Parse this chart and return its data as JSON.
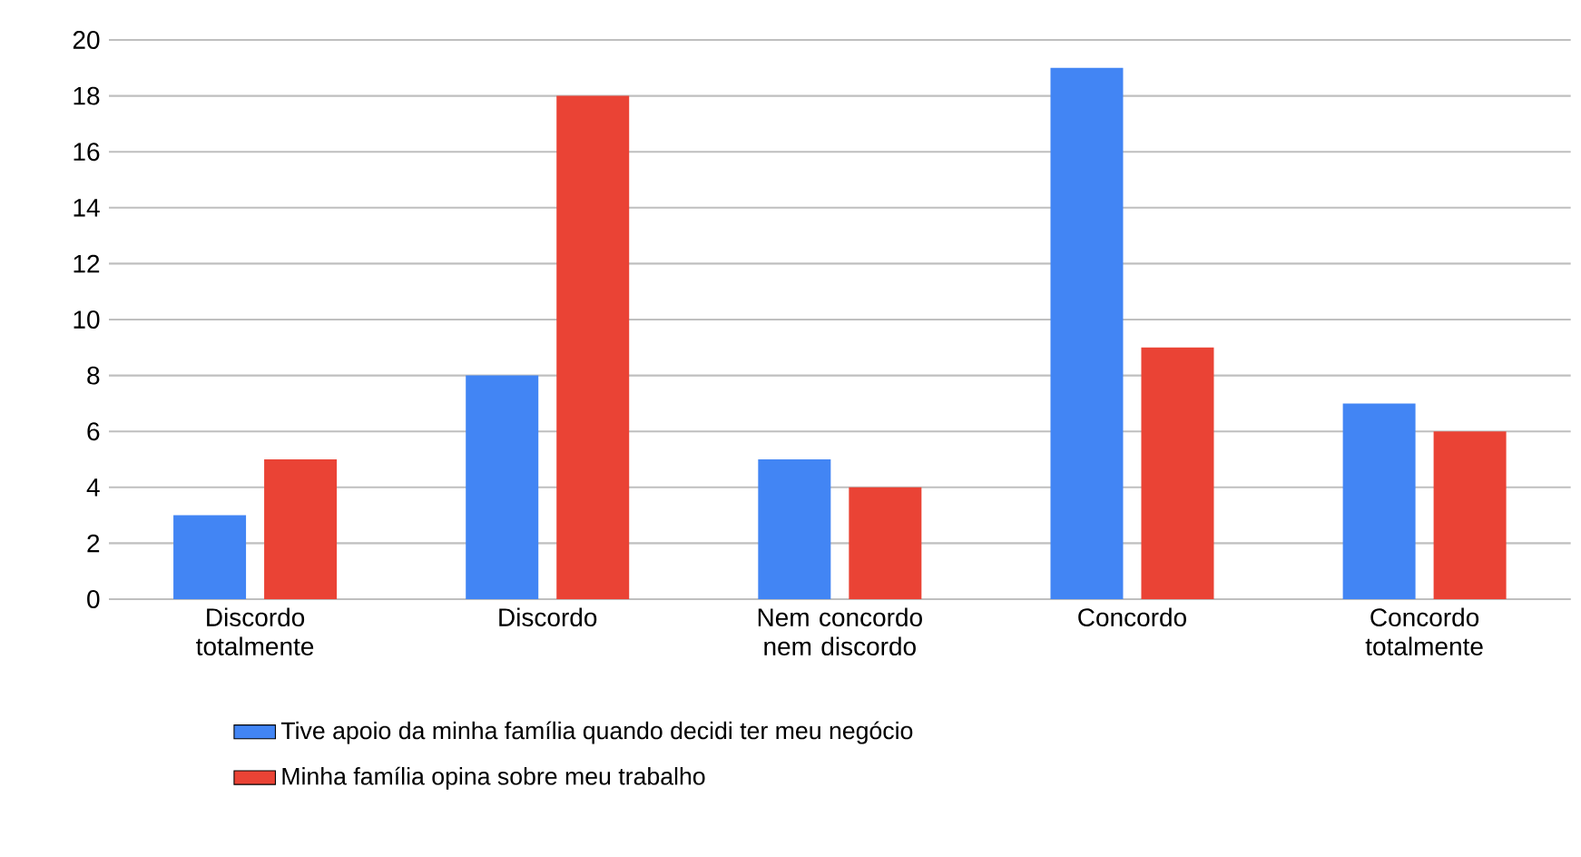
{
  "chart_data": {
    "type": "bar",
    "categories": [
      "Discordo totalmente",
      "Discordo",
      "Nem concordo nem discordo",
      "Concordo",
      "Concordo totalmente"
    ],
    "series": [
      {
        "name": "Tive apoio da minha família quando decidi ter meu negócio",
        "color": "#4285f4",
        "values": [
          3,
          8,
          5,
          19,
          7
        ]
      },
      {
        "name": "Minha família opina sobre meu trabalho",
        "color": "#ea4335",
        "values": [
          5,
          18,
          4,
          9,
          6
        ]
      }
    ],
    "ylim": [
      0,
      20
    ],
    "yticks": [
      0,
      2,
      4,
      6,
      8,
      10,
      12,
      14,
      16,
      18,
      20
    ],
    "grid": "y",
    "legend": "bottom"
  }
}
